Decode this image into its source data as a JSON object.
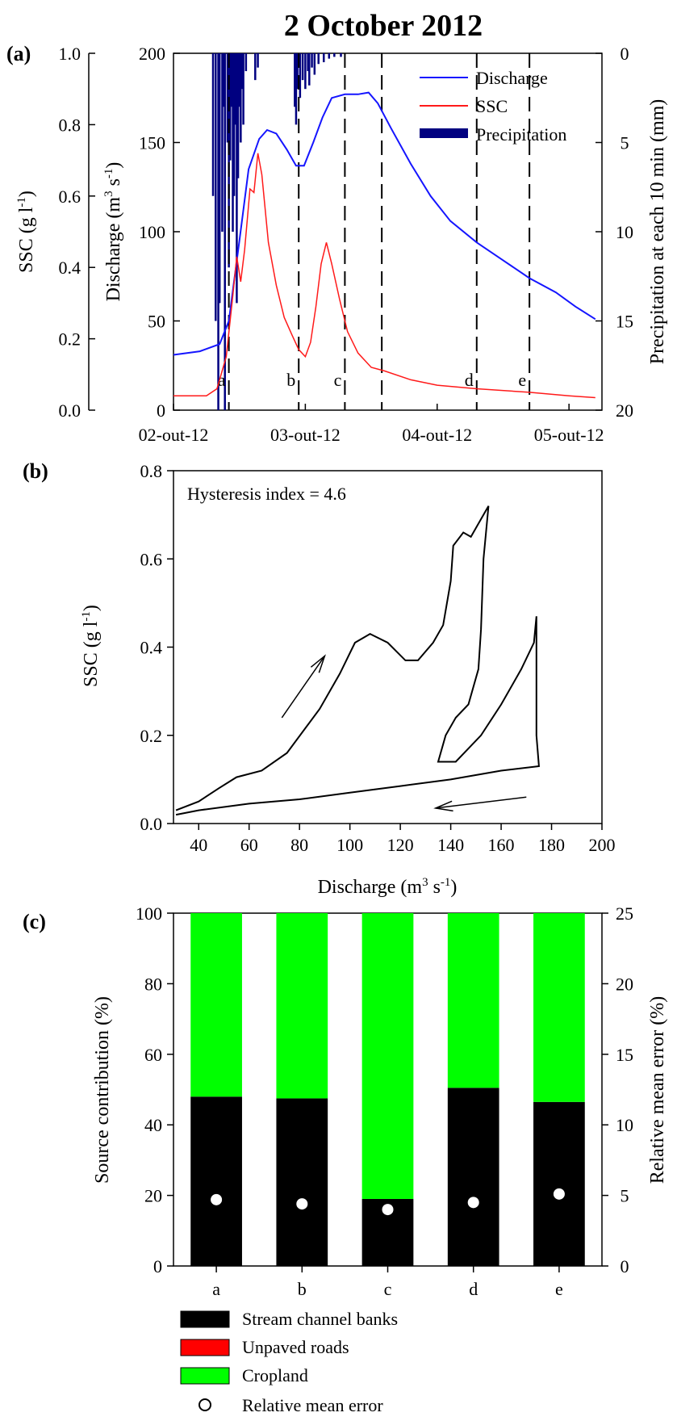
{
  "figure_title": "2 October 2012",
  "panel_labels": {
    "a": "(a)",
    "b": "(b)",
    "c": "(c)"
  },
  "colors": {
    "discharge": "#1515ff",
    "ssc": "#ff1a1a",
    "precipitation": "#000080",
    "stream_channel_banks": "#000000",
    "unpaved_roads": "#ff0000",
    "cropland": "#00ff00"
  },
  "chart_data": [
    {
      "id": "a",
      "type": "line",
      "ylabel_left": "SSC (g l",
      "ylabel_left_sup": "-1",
      "ylabel_left_end": ")",
      "ylabel_mid": "Discharge (m",
      "ylabel_mid_sup1": "3",
      "ylabel_mid_mid": " s",
      "ylabel_mid_sup2": "-1",
      "ylabel_mid_end": ")",
      "ylabel_right": "Precipitation at each 10 min (mm)",
      "ssc_ylim": [
        0,
        1.0
      ],
      "ssc_ticks": [
        "0.0",
        "0.2",
        "0.4",
        "0.6",
        "0.8",
        "1.0"
      ],
      "discharge_ylim": [
        0,
        200
      ],
      "discharge_ticks": [
        "0",
        "50",
        "100",
        "150",
        "200"
      ],
      "precip_ylim_reversed": [
        0,
        20
      ],
      "precip_ticks": [
        "0",
        "5",
        "10",
        "15",
        "20"
      ],
      "x_range_days": [
        0,
        3.25
      ],
      "x_tick_labels": [
        "02-out-12",
        "03-out-12",
        "04-out-12",
        "05-out-12"
      ],
      "x_tick_days": [
        0,
        1,
        2,
        3
      ],
      "legend": [
        "Discharge",
        "SSC",
        "Precipitation"
      ],
      "sample_markers": [
        {
          "label": "a",
          "day": 0.42
        },
        {
          "label": "b",
          "day": 0.95
        },
        {
          "label": "c",
          "day": 1.3
        },
        {
          "label": "",
          "day": 1.58
        },
        {
          "label": "d",
          "day": 2.3
        },
        {
          "label": "e",
          "day": 2.7
        }
      ],
      "discharge": [
        [
          0,
          31
        ],
        [
          0.2,
          33
        ],
        [
          0.35,
          37
        ],
        [
          0.42,
          50
        ],
        [
          0.5,
          95
        ],
        [
          0.57,
          135
        ],
        [
          0.65,
          152
        ],
        [
          0.71,
          157
        ],
        [
          0.78,
          155
        ],
        [
          0.86,
          146
        ],
        [
          0.93,
          137
        ],
        [
          0.99,
          137
        ],
        [
          1.06,
          150
        ],
        [
          1.13,
          164
        ],
        [
          1.2,
          175
        ],
        [
          1.3,
          177
        ],
        [
          1.4,
          177
        ],
        [
          1.48,
          178
        ],
        [
          1.55,
          172
        ],
        [
          1.65,
          158
        ],
        [
          1.8,
          138
        ],
        [
          1.95,
          120
        ],
        [
          2.1,
          106
        ],
        [
          2.3,
          94
        ],
        [
          2.5,
          84
        ],
        [
          2.7,
          74
        ],
        [
          2.9,
          66
        ],
        [
          3.05,
          58
        ],
        [
          3.2,
          51
        ]
      ],
      "ssc": [
        [
          0,
          0.04
        ],
        [
          0.25,
          0.04
        ],
        [
          0.33,
          0.06
        ],
        [
          0.4,
          0.15
        ],
        [
          0.45,
          0.32
        ],
        [
          0.48,
          0.43
        ],
        [
          0.51,
          0.36
        ],
        [
          0.54,
          0.45
        ],
        [
          0.58,
          0.62
        ],
        [
          0.61,
          0.61
        ],
        [
          0.64,
          0.72
        ],
        [
          0.67,
          0.66
        ],
        [
          0.72,
          0.47
        ],
        [
          0.78,
          0.35
        ],
        [
          0.84,
          0.26
        ],
        [
          0.9,
          0.21
        ],
        [
          0.95,
          0.17
        ],
        [
          1.0,
          0.15
        ],
        [
          1.04,
          0.19
        ],
        [
          1.08,
          0.29
        ],
        [
          1.12,
          0.41
        ],
        [
          1.16,
          0.47
        ],
        [
          1.2,
          0.41
        ],
        [
          1.26,
          0.31
        ],
        [
          1.32,
          0.22
        ],
        [
          1.4,
          0.16
        ],
        [
          1.5,
          0.12
        ],
        [
          1.6,
          0.11
        ],
        [
          1.8,
          0.085
        ],
        [
          2.0,
          0.07
        ],
        [
          2.3,
          0.06
        ],
        [
          2.7,
          0.05
        ],
        [
          3.0,
          0.04
        ],
        [
          3.2,
          0.035
        ]
      ],
      "precipitation": [
        [
          0.3,
          8
        ],
        [
          0.32,
          15
        ],
        [
          0.34,
          20
        ],
        [
          0.35,
          14
        ],
        [
          0.37,
          10
        ],
        [
          0.38,
          3
        ],
        [
          0.39,
          20
        ],
        [
          0.41,
          5
        ],
        [
          0.42,
          12
        ],
        [
          0.43,
          6
        ],
        [
          0.44,
          3
        ],
        [
          0.45,
          10
        ],
        [
          0.46,
          8
        ],
        [
          0.47,
          4
        ],
        [
          0.48,
          14
        ],
        [
          0.49,
          7
        ],
        [
          0.5,
          3
        ],
        [
          0.51,
          5
        ],
        [
          0.52,
          2
        ],
        [
          0.53,
          4
        ],
        [
          0.55,
          1
        ],
        [
          0.62,
          1.5
        ],
        [
          0.64,
          0.8
        ],
        [
          0.92,
          3
        ],
        [
          0.93,
          4
        ],
        [
          0.94,
          2
        ],
        [
          0.96,
          2.5
        ],
        [
          0.98,
          1.5
        ],
        [
          1.0,
          2
        ],
        [
          1.02,
          1
        ],
        [
          1.03,
          1.8
        ],
        [
          1.05,
          0.8
        ],
        [
          1.07,
          1.2
        ],
        [
          1.1,
          0.6
        ],
        [
          1.14,
          0.5
        ],
        [
          1.18,
          0.3
        ],
        [
          1.22,
          0.2
        ],
        [
          1.27,
          0.2
        ]
      ]
    },
    {
      "id": "b",
      "type": "line",
      "annotation": "Hysteresis index = 4.6",
      "xlabel": "Discharge (m",
      "xlabel_sup1": "3",
      "xlabel_mid": " s",
      "xlabel_sup2": "-1",
      "xlabel_end": ")",
      "ylabel": "SSC (g l",
      "ylabel_sup": "-1",
      "ylabel_end": ")",
      "xlim": [
        30,
        200
      ],
      "ylim": [
        0,
        0.8
      ],
      "x_ticks": [
        40,
        60,
        80,
        100,
        120,
        140,
        160,
        180,
        200
      ],
      "y_ticks": [
        "0.0",
        "0.2",
        "0.4",
        "0.6",
        "0.8"
      ],
      "loop": [
        [
          31,
          0.03
        ],
        [
          40,
          0.05
        ],
        [
          48,
          0.08
        ],
        [
          55,
          0.105
        ],
        [
          65,
          0.12
        ],
        [
          75,
          0.16
        ],
        [
          88,
          0.26
        ],
        [
          96,
          0.34
        ],
        [
          102,
          0.41
        ],
        [
          108,
          0.43
        ],
        [
          115,
          0.41
        ],
        [
          122,
          0.37
        ],
        [
          127,
          0.37
        ],
        [
          133,
          0.41
        ],
        [
          137,
          0.45
        ],
        [
          140,
          0.55
        ],
        [
          141,
          0.63
        ],
        [
          145,
          0.66
        ],
        [
          148,
          0.65
        ],
        [
          150,
          0.67
        ],
        [
          155,
          0.72
        ],
        [
          153,
          0.6
        ],
        [
          152,
          0.44
        ],
        [
          151,
          0.35
        ],
        [
          147,
          0.27
        ],
        [
          142,
          0.24
        ],
        [
          138,
          0.2
        ],
        [
          135,
          0.14
        ],
        [
          142,
          0.14
        ],
        [
          152,
          0.2
        ],
        [
          160,
          0.27
        ],
        [
          168,
          0.35
        ],
        [
          173,
          0.41
        ],
        [
          174,
          0.47
        ],
        [
          174,
          0.35
        ],
        [
          174,
          0.2
        ],
        [
          175,
          0.13
        ],
        [
          160,
          0.12
        ],
        [
          140,
          0.1
        ],
        [
          120,
          0.085
        ],
        [
          100,
          0.07
        ],
        [
          80,
          0.055
        ],
        [
          60,
          0.045
        ],
        [
          40,
          0.03
        ],
        [
          31,
          0.02
        ]
      ],
      "arrows": [
        {
          "from": [
            73,
            0.24
          ],
          "to": [
            90,
            0.38
          ]
        },
        {
          "from": [
            170,
            0.06
          ],
          "to": [
            134,
            0.035
          ]
        }
      ]
    },
    {
      "id": "c",
      "type": "bar",
      "ylabel_left": "Source contribution (%)",
      "ylabel_right": "Relative mean error (%)",
      "categories": [
        "a",
        "b",
        "c",
        "d",
        "e"
      ],
      "ylim_left": [
        0,
        100
      ],
      "ylim_right": [
        0,
        25
      ],
      "left_ticks": [
        0,
        20,
        40,
        60,
        80,
        100
      ],
      "right_ticks": [
        0,
        5,
        10,
        15,
        20,
        25
      ],
      "series": [
        {
          "name": "Stream channel banks",
          "values": [
            48,
            47.5,
            19,
            50.5,
            46.5
          ]
        },
        {
          "name": "Unpaved roads",
          "values": [
            0,
            0,
            0,
            0,
            0
          ]
        },
        {
          "name": "Cropland",
          "values": [
            52,
            52.5,
            81,
            49.5,
            53.5
          ]
        }
      ],
      "relative_mean_error": [
        4.7,
        4.4,
        4.0,
        4.5,
        5.1
      ],
      "legend": [
        "Stream channel banks",
        "Unpaved roads",
        "Cropland",
        "Relative mean error"
      ]
    }
  ]
}
